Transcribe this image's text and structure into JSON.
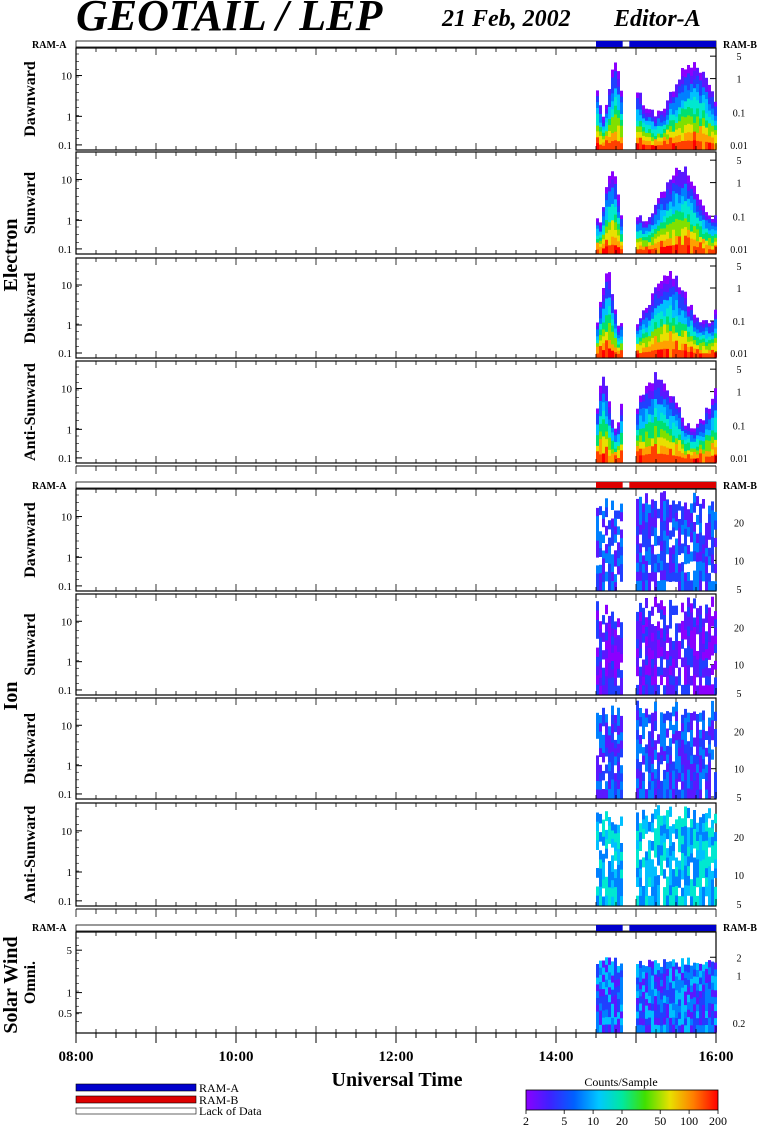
{
  "header": {
    "title": "GEOTAIL / LEP",
    "date": "21 Feb, 2002",
    "editor": "Editor-A"
  },
  "ram_a_label": "RAM-A",
  "ram_b_label": "RAM-B",
  "groups": {
    "electron": "Electron",
    "ion": "Ion",
    "solar_wind": "Solar Wind"
  },
  "panel_labels": {
    "e_dawn": "Dawnward",
    "e_sun": "Sunward",
    "e_dusk": "Duskward",
    "e_anti": "Anti-Sunward",
    "i_dawn": "Dawnward",
    "i_sun": "Sunward",
    "i_dusk": "Duskward",
    "i_anti": "Anti-Sunward",
    "sw_omni": "Omni."
  },
  "x_axis": {
    "title": "Universal Time",
    "ticks": [
      "08:00",
      "10:00",
      "12:00",
      "14:00",
      "16:00"
    ]
  },
  "legend": {
    "ram_a": "RAM-A",
    "ram_b": "RAM-B",
    "lack": "Lack of Data"
  },
  "colorbar": {
    "title": "Counts/Sample",
    "ticks": [
      "2",
      "5",
      "10",
      "20",
      "50",
      "100",
      "200"
    ]
  },
  "colors": {
    "ram_a": "#0000cc",
    "ram_b": "#dd0000",
    "scale": [
      "#8b00ff",
      "#5a18ff",
      "#2040ff",
      "#0080ff",
      "#00c0ff",
      "#00e8d0",
      "#00e070",
      "#80e000",
      "#e8e000",
      "#ffa000",
      "#ff4000",
      "#ff0000"
    ]
  },
  "chart_data": {
    "type": "heatmap",
    "x_range": [
      "08:00",
      "16:00"
    ],
    "data_intervals": [
      [
        "14:30",
        "14:50"
      ],
      [
        "15:00",
        "16:00"
      ]
    ],
    "electron_panels": {
      "y_left_ticks": [
        "10",
        "1",
        "0.1"
      ],
      "y_right_ticks": [
        "5",
        "1",
        "0.1",
        "0.01"
      ],
      "mode_bar": [
        {
          "from": "14:30",
          "to": "14:50",
          "mode": "RAM-A"
        },
        {
          "from": "14:55",
          "to": "16:00",
          "mode": "RAM-A"
        }
      ]
    },
    "ion_panels": {
      "y_left_ticks": [
        "10",
        "1",
        "0.1"
      ],
      "y_right_ticks": [
        "20",
        "10",
        "5"
      ],
      "mode_bar": [
        {
          "from": "14:30",
          "to": "14:50",
          "mode": "RAM-B"
        },
        {
          "from": "14:55",
          "to": "16:00",
          "mode": "RAM-B"
        }
      ]
    },
    "solar_wind_panel": {
      "y_left_ticks": [
        "5",
        "1",
        "0.5"
      ],
      "y_right_ticks": [
        "2",
        "1",
        "0.2"
      ],
      "mode_bar": [
        {
          "from": "14:30",
          "to": "14:50",
          "mode": "RAM-A"
        },
        {
          "from": "14:55",
          "to": "16:00",
          "mode": "RAM-A"
        }
      ]
    },
    "colorbar_range": [
      2,
      200
    ],
    "colorbar_scale": "log"
  }
}
